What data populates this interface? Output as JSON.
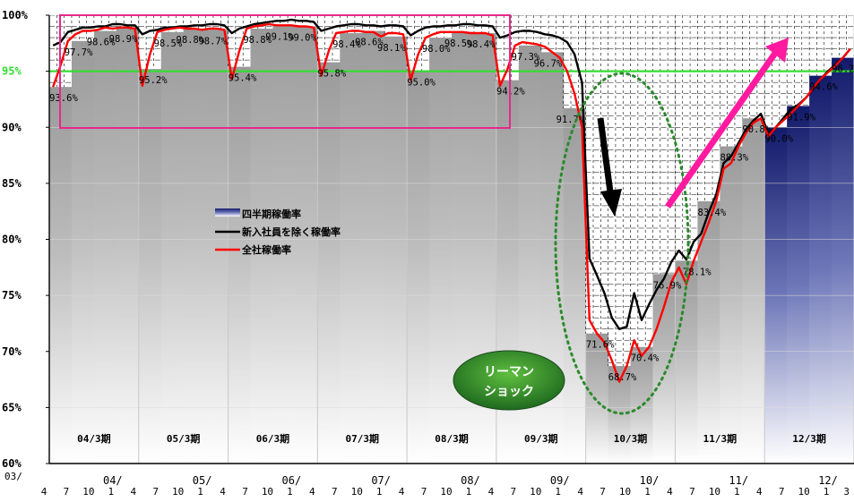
{
  "chart_data": {
    "type": "bar+line",
    "title": "",
    "xlabel": "",
    "ylabel": "",
    "ylim": [
      60,
      100
    ],
    "y_ticks": [
      "60%",
      "65%",
      "70%",
      "75%",
      "80%",
      "85%",
      "90%",
      "95%",
      "100%"
    ],
    "target_line": {
      "value": 95,
      "label": "95%",
      "color": "#33dd33"
    },
    "x_start_label": "03/ 4",
    "fiscal_years": [
      {
        "label": "04/3期",
        "year_label": "04/"
      },
      {
        "label": "05/3期",
        "year_label": "05/"
      },
      {
        "label": "06/3期",
        "year_label": "06/"
      },
      {
        "label": "07/3期",
        "year_label": "07/"
      },
      {
        "label": "08/3期",
        "year_label": "08/"
      },
      {
        "label": "09/3期",
        "year_label": "09/"
      },
      {
        "label": "10/3期",
        "year_label": "10/"
      },
      {
        "label": "11/3期",
        "year_label": "11/"
      },
      {
        "label": "12/3期",
        "year_label": "12/"
      }
    ],
    "month_ticks": [
      "4",
      "7",
      "10",
      "1"
    ],
    "end_tick": "3",
    "quarterly_bars": {
      "name": "四半期稼働率",
      "values": [
        93.6,
        97.7,
        98.6,
        98.9,
        95.2,
        98.5,
        98.8,
        98.7,
        95.4,
        98.8,
        99.1,
        99.0,
        95.8,
        98.4,
        98.6,
        98.1,
        95.0,
        98.0,
        98.5,
        98.4,
        94.2,
        97.3,
        96.7,
        91.7,
        71.6,
        68.7,
        70.4,
        76.9,
        78.1,
        83.4,
        88.3,
        90.8,
        90.0,
        91.9,
        94.6,
        96.2
      ]
    },
    "series": [
      {
        "name": "新入社員を除く稼働率",
        "color": "#000000",
        "values": [
          97.3,
          97.6,
          98.5,
          98.7,
          98.9,
          98.9,
          99.0,
          99.0,
          99.2,
          99.2,
          99.1,
          99.1,
          98.3,
          98.6,
          98.7,
          98.9,
          98.9,
          99.0,
          99.0,
          99.1,
          99.1,
          99.2,
          99.2,
          99.1,
          98.4,
          98.8,
          99.0,
          99.2,
          99.3,
          99.4,
          99.5,
          99.5,
          99.6,
          99.5,
          99.5,
          99.4,
          98.6,
          98.8,
          99.0,
          99.1,
          99.2,
          99.2,
          99.1,
          99.1,
          99.0,
          99.1,
          99.1,
          99.0,
          98.2,
          98.6,
          98.9,
          99.0,
          99.0,
          99.1,
          99.1,
          99.2,
          99.2,
          99.1,
          99.1,
          99.0,
          98.0,
          98.2,
          98.5,
          98.6,
          98.6,
          98.5,
          98.3,
          98.2,
          98.0,
          97.6,
          96.5,
          94.0,
          78.3,
          76.8,
          75.2,
          73.0,
          72.0,
          72.2,
          75.2,
          72.8,
          74.2,
          75.5,
          76.5,
          78.0,
          79.0,
          78.2,
          79.8,
          80.5,
          82.4,
          84.0,
          86.8,
          87.4,
          88.6,
          89.8,
          90.6,
          91.2,
          89.4,
          90.0,
          90.8,
          91.6,
          92.0,
          92.6,
          93.4,
          94.3,
          95.0,
          95.6,
          96.2,
          97.0
        ]
      },
      {
        "name": "全社稼働率",
        "color": "#ff0000",
        "values": [
          93.6,
          95.5,
          97.7,
          98.3,
          98.6,
          98.6,
          98.7,
          98.9,
          98.8,
          98.9,
          98.9,
          98.8,
          93.7,
          96.5,
          98.5,
          98.7,
          98.8,
          98.9,
          98.8,
          98.8,
          98.7,
          98.8,
          98.8,
          98.7,
          94.3,
          96.8,
          98.8,
          99.0,
          99.1,
          99.2,
          99.1,
          99.1,
          99.1,
          99.0,
          99.0,
          98.9,
          94.6,
          96.8,
          98.4,
          98.5,
          98.6,
          98.6,
          98.5,
          98.5,
          98.1,
          98.4,
          98.4,
          98.3,
          94.2,
          96.5,
          98.0,
          98.3,
          98.5,
          98.5,
          98.5,
          98.5,
          98.4,
          98.4,
          98.4,
          98.2,
          93.7,
          95.2,
          97.3,
          97.6,
          97.5,
          97.4,
          97.2,
          96.7,
          96.2,
          95.0,
          93.0,
          90.0,
          72.8,
          71.6,
          70.8,
          69.2,
          67.3,
          68.7,
          71.0,
          69.6,
          70.4,
          72.0,
          74.0,
          76.2,
          77.5,
          76.0,
          78.1,
          79.8,
          81.5,
          83.4,
          86.3,
          86.8,
          88.3,
          89.5,
          90.4,
          90.8,
          89.2,
          90.0,
          90.6,
          91.2,
          91.9,
          92.6,
          93.5,
          94.3,
          94.9,
          95.5,
          96.2,
          97.0
        ]
      }
    ],
    "data_labels": [
      {
        "text": "93.6%",
        "month": 0,
        "value": 93.6
      },
      {
        "text": "97.7%",
        "month": 2,
        "value": 97.7
      },
      {
        "text": "98.6%",
        "month": 5,
        "value": 98.6
      },
      {
        "text": "98.9%",
        "month": 8,
        "value": 98.9
      },
      {
        "text": "95.2%",
        "month": 12,
        "value": 95.2
      },
      {
        "text": "98.5%",
        "month": 14,
        "value": 98.5
      },
      {
        "text": "98.8%",
        "month": 17,
        "value": 98.8
      },
      {
        "text": "98.7%",
        "month": 20,
        "value": 98.7
      },
      {
        "text": "95.4%",
        "month": 24,
        "value": 95.4
      },
      {
        "text": "98.8%",
        "month": 26,
        "value": 98.8
      },
      {
        "text": "99.1%",
        "month": 29,
        "value": 99.1
      },
      {
        "text": "99.0%",
        "month": 32,
        "value": 99.0
      },
      {
        "text": "95.8%",
        "month": 36,
        "value": 95.8
      },
      {
        "text": "98.4%",
        "month": 38,
        "value": 98.4
      },
      {
        "text": "98.6%",
        "month": 41,
        "value": 98.6
      },
      {
        "text": "98.1%",
        "month": 44,
        "value": 98.1
      },
      {
        "text": "95.0%",
        "month": 48,
        "value": 95.0
      },
      {
        "text": "98.0%",
        "month": 50,
        "value": 98.0
      },
      {
        "text": "98.5%",
        "month": 53,
        "value": 98.5
      },
      {
        "text": "98.4%",
        "month": 56,
        "value": 98.4
      },
      {
        "text": "94.2%",
        "month": 60,
        "value": 94.2
      },
      {
        "text": "97.3%",
        "month": 62,
        "value": 97.3
      },
      {
        "text": "96.7%",
        "month": 65,
        "value": 96.7
      },
      {
        "text": "91.7%",
        "month": 68,
        "value": 91.7
      },
      {
        "text": "71.6%",
        "month": 72,
        "value": 71.6
      },
      {
        "text": "68.7%",
        "month": 75,
        "value": 68.7
      },
      {
        "text": "70.4%",
        "month": 78,
        "value": 70.4
      },
      {
        "text": "76.9%",
        "month": 81,
        "value": 76.9
      },
      {
        "text": "78.1%",
        "month": 85,
        "value": 78.1
      },
      {
        "text": "83.4%",
        "month": 87,
        "value": 83.4
      },
      {
        "text": "88.3%",
        "month": 90,
        "value": 88.3
      },
      {
        "text": "90.8%",
        "month": 93,
        "value": 90.8
      },
      {
        "text": "90.0%",
        "month": 96,
        "value": 90.0
      },
      {
        "text": "91.9%",
        "month": 99,
        "value": 91.9
      },
      {
        "text": "94.6%",
        "month": 102,
        "value": 94.6
      },
      {
        "text": "96.2%",
        "month": 105,
        "value": 96.2
      }
    ],
    "legend": {
      "placement": "center-left",
      "items": [
        {
          "text": "四半期稼働率",
          "kind": "bar"
        },
        {
          "text": "新入社員を除く稼働率",
          "kind": "line",
          "color": "#000000"
        },
        {
          "text": "全社稼働率",
          "kind": "line",
          "color": "#ff0000"
        }
      ]
    },
    "annotations": {
      "badge_lines": [
        "リーマン",
        "ショック"
      ],
      "badge_color": "#2a8a2a",
      "box_color": "#e8288a",
      "ellipse_color": "#2a8a2a",
      "up_arrow_color": "#ff1aa0",
      "down_arrow_color": "#000000"
    },
    "grid": true
  }
}
